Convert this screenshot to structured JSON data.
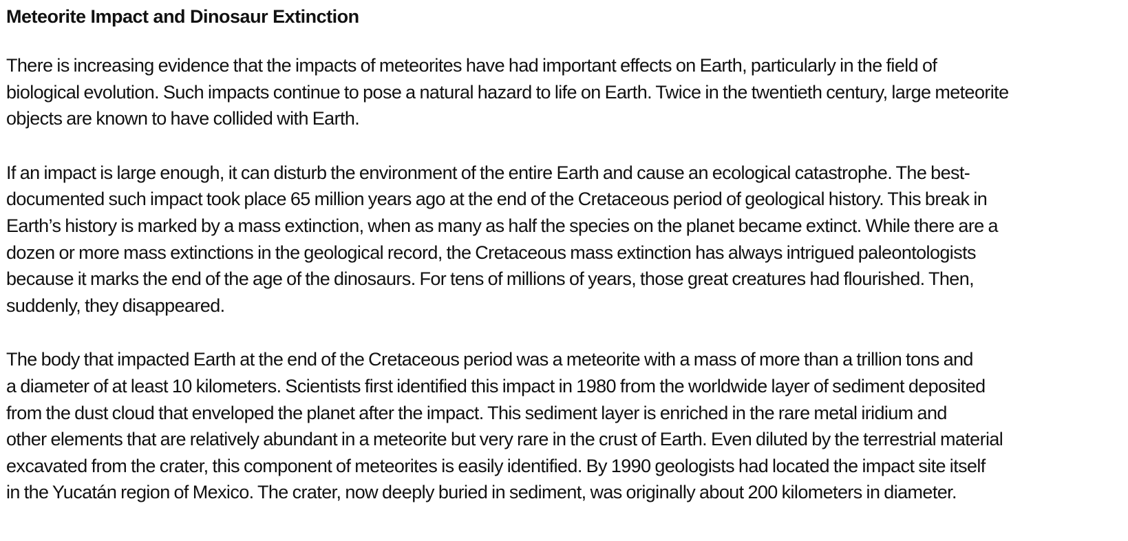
{
  "title": "Meteorite Impact and Dinosaur Extinction",
  "paragraphs": [
    {
      "lines": [
        "There is increasing evidence that the impacts of meteorites have had important effects on Earth, particularly in the field of",
        "biological evolution. Such impacts continue to pose a natural hazard to life on Earth. Twice in the twentieth century, large meteorite",
        "objects are known to have collided with Earth."
      ]
    },
    {
      "lines": [
        "If an impact is large enough, it can disturb the environment of the entire Earth and cause an ecological catastrophe. The best-",
        "documented such impact took place 65 million years ago at the end of the Cretaceous period of geological history. This break in",
        "Earth’s history is marked by a mass extinction, when as many as half the species on the planet became extinct. While there are a",
        "dozen or more mass extinctions in the geological record, the Cretaceous mass extinction has always intrigued paleontologists",
        "because it marks the end of the age of the dinosaurs. For tens of millions of years, those great creatures had flourished. Then,",
        "suddenly, they disappeared."
      ]
    },
    {
      "lines": [
        "The body that impacted Earth at the end of the Cretaceous period was a meteorite with a mass of more than a trillion tons and",
        "a diameter of at least 10 kilometers. Scientists first identified this impact in 1980 from the worldwide layer of sediment deposited",
        "from the dust cloud that enveloped the planet after the impact. This sediment layer is enriched in the rare metal iridium and",
        "other elements that are relatively abundant in a meteorite but very rare in the crust of Earth. Even diluted by the terrestrial material",
        "excavated from the crater, this component of meteorites is easily identified. By 1990 geologists had located the impact site itself",
        "in the Yucatán region of Mexico. The crater, now deeply buried in sediment, was originally about 200 kilometers in diameter."
      ]
    }
  ]
}
